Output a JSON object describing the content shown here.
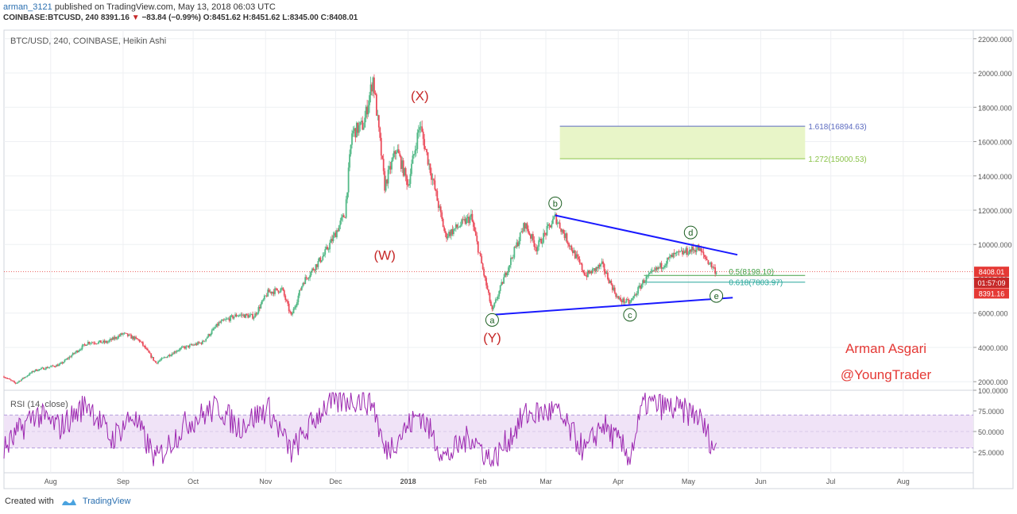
{
  "header": {
    "author": "arman_3121",
    "published_text": "published on TradingView.com, May 13, 2018 06:03 UTC",
    "symbol": "COINBASE:BTCUSD, 240",
    "last": "8391.16",
    "change_arrow": "▼",
    "change": "−83.84 (−0.99%)",
    "o_label": "O:",
    "o": "8451.62",
    "h_label": "H:",
    "h": "8451.62",
    "l_label": "L:",
    "l": "8345.00",
    "c_label": "C:",
    "c": "8408.01"
  },
  "legend": {
    "price": "BTC/USD, 240, COINBASE, Heikin Ashi",
    "rsi": "RSI (14, close)"
  },
  "footer": {
    "created_with": "Created with",
    "brand": "TradingView"
  },
  "colors": {
    "up": "#53b987",
    "down": "#eb4d5c",
    "rsi": "#9c27b0",
    "trend": "#1a1aff",
    "wave_label": "#c62828",
    "author": "#e53935",
    "band_fill": "#e8f5c8",
    "fib_1618": "#5c6bc0",
    "fib_1272": "#8bc34a",
    "fib_05": "#43a047",
    "fib_0618": "#26a69a",
    "price_tag": "#e53935"
  },
  "chart_data": [
    {
      "type": "candlestick",
      "title": "BTC/USD, 240, COINBASE, Heikin Ashi",
      "x_ticks": [
        "Aug",
        "Sep",
        "Oct",
        "Nov",
        "Dec",
        "2018",
        "Feb",
        "Mar",
        "Apr",
        "May",
        "Jun",
        "Jul",
        "Aug"
      ],
      "x_range": [
        "2017-07-12",
        "2018-08-31"
      ],
      "ylim": [
        1500,
        22500
      ],
      "y_ticks": [
        "2000.000",
        "4000.000",
        "6000.000",
        "8000.000",
        "10000.000",
        "12000.000",
        "14000.000",
        "16000.000",
        "18000.000",
        "20000.000",
        "22000.000"
      ],
      "y_tick_values": [
        2000,
        4000,
        6000,
        8000,
        10000,
        12000,
        14000,
        16000,
        18000,
        20000,
        22000
      ],
      "price_path": [
        [
          "2017-07-12",
          2300
        ],
        [
          "2017-07-17",
          1900
        ],
        [
          "2017-07-25",
          2650
        ],
        [
          "2017-08-05",
          3000
        ],
        [
          "2017-08-17",
          4300
        ],
        [
          "2017-08-25",
          4300
        ],
        [
          "2017-09-01",
          4800
        ],
        [
          "2017-09-08",
          4400
        ],
        [
          "2017-09-15",
          3100
        ],
        [
          "2017-09-25",
          3900
        ],
        [
          "2017-10-05",
          4300
        ],
        [
          "2017-10-12",
          5400
        ],
        [
          "2017-10-20",
          5900
        ],
        [
          "2017-10-27",
          5800
        ],
        [
          "2017-11-02",
          7200
        ],
        [
          "2017-11-08",
          7400
        ],
        [
          "2017-11-12",
          5800
        ],
        [
          "2017-11-17",
          7800
        ],
        [
          "2017-11-26",
          9400
        ],
        [
          "2017-11-30",
          10400
        ],
        [
          "2017-12-05",
          11800
        ],
        [
          "2017-12-08",
          16500
        ],
        [
          "2017-12-13",
          17000
        ],
        [
          "2017-12-17",
          19700
        ],
        [
          "2017-12-22",
          13400
        ],
        [
          "2017-12-27",
          15600
        ],
        [
          "2018-01-01",
          13500
        ],
        [
          "2018-01-06",
          17000
        ],
        [
          "2018-01-12",
          13500
        ],
        [
          "2018-01-17",
          10500
        ],
        [
          "2018-01-28",
          11600
        ],
        [
          "2018-02-06",
          6100
        ],
        [
          "2018-02-12",
          8400
        ],
        [
          "2018-02-20",
          11200
        ],
        [
          "2018-02-25",
          9800
        ],
        [
          "2018-03-05",
          11600
        ],
        [
          "2018-03-18",
          8200
        ],
        [
          "2018-03-25",
          8800
        ],
        [
          "2018-04-01",
          6800
        ],
        [
          "2018-04-06",
          6600
        ],
        [
          "2018-04-12",
          7900
        ],
        [
          "2018-04-24",
          9300
        ],
        [
          "2018-05-05",
          9800
        ],
        [
          "2018-05-13",
          8400
        ]
      ],
      "annotations": {
        "wave_labels": [
          {
            "text": "(W)",
            "date": "2017-12-22",
            "price": 9100
          },
          {
            "text": "(X)",
            "date": "2018-01-06",
            "price": 18400
          },
          {
            "text": "(Y)",
            "date": "2018-02-06",
            "price": 4300
          }
        ],
        "circle_labels": [
          {
            "text": "a",
            "date": "2018-02-06",
            "price": 5600
          },
          {
            "text": "b",
            "date": "2018-03-05",
            "price": 12400
          },
          {
            "text": "c",
            "date": "2018-04-06",
            "price": 5900
          },
          {
            "text": "d",
            "date": "2018-05-02",
            "price": 10700
          },
          {
            "text": "e",
            "date": "2018-05-13",
            "price": 7000
          }
        ],
        "trendlines": [
          {
            "from": [
              "2018-02-06",
              5900
            ],
            "to": [
              "2018-05-20",
              6900
            ]
          },
          {
            "from": [
              "2018-03-05",
              11700
            ],
            "to": [
              "2018-05-22",
              9400
            ]
          }
        ],
        "target_band": {
          "from_date": "2018-03-07",
          "to_date": "2018-06-20",
          "low": 15000.53,
          "high": 16894.63
        },
        "fib_levels": [
          {
            "ratio": "1.618",
            "value": "16894.63",
            "price": 16894.63,
            "label": "1.618(16894.63)"
          },
          {
            "ratio": "1.272",
            "value": "15000.53",
            "price": 15000.53,
            "label": "1.272(15000.53)"
          },
          {
            "ratio": "0.5",
            "value": "8198.10",
            "price": 8198.1,
            "label": "0.5(8198.10)"
          },
          {
            "ratio": "0.618",
            "value": "7803.97",
            "price": 7803.97,
            "label": "0.618(7803.97)"
          }
        ],
        "author_text": [
          "Arman Asgari",
          "@YoungTrader"
        ]
      },
      "price_tags": [
        {
          "label": "8408.01",
          "price": 8408.01
        },
        {
          "label": "01:57:09",
          "price": 7770
        },
        {
          "label": "8391.16",
          "price": 7150
        }
      ],
      "last_price_line": 8408.01
    },
    {
      "type": "line",
      "title": "RSI (14, close)",
      "ylim": [
        0,
        100
      ],
      "y_ticks": [
        "25.0000",
        "50.0000",
        "75.0000",
        "100.0000"
      ],
      "y_tick_values": [
        25,
        50,
        75,
        100
      ],
      "band": [
        30,
        70
      ],
      "rsi_path": [
        [
          "2017-07-12",
          28
        ],
        [
          "2017-07-25",
          72
        ],
        [
          "2017-08-05",
          55
        ],
        [
          "2017-08-17",
          85
        ],
        [
          "2017-08-27",
          40
        ],
        [
          "2017-09-05",
          70
        ],
        [
          "2017-09-15",
          15
        ],
        [
          "2017-09-28",
          60
        ],
        [
          "2017-10-12",
          80
        ],
        [
          "2017-10-20",
          55
        ],
        [
          "2017-11-02",
          78
        ],
        [
          "2017-11-12",
          25
        ],
        [
          "2017-11-26",
          80
        ],
        [
          "2017-12-08",
          90
        ],
        [
          "2017-12-17",
          85
        ],
        [
          "2017-12-22",
          25
        ],
        [
          "2018-01-06",
          72
        ],
        [
          "2018-01-17",
          18
        ],
        [
          "2018-01-28",
          45
        ],
        [
          "2018-02-06",
          12
        ],
        [
          "2018-02-20",
          70
        ],
        [
          "2018-03-05",
          75
        ],
        [
          "2018-03-18",
          25
        ],
        [
          "2018-03-25",
          60
        ],
        [
          "2018-04-06",
          20
        ],
        [
          "2018-04-12",
          85
        ],
        [
          "2018-04-24",
          78
        ],
        [
          "2018-05-05",
          70
        ],
        [
          "2018-05-13",
          25
        ]
      ]
    }
  ]
}
